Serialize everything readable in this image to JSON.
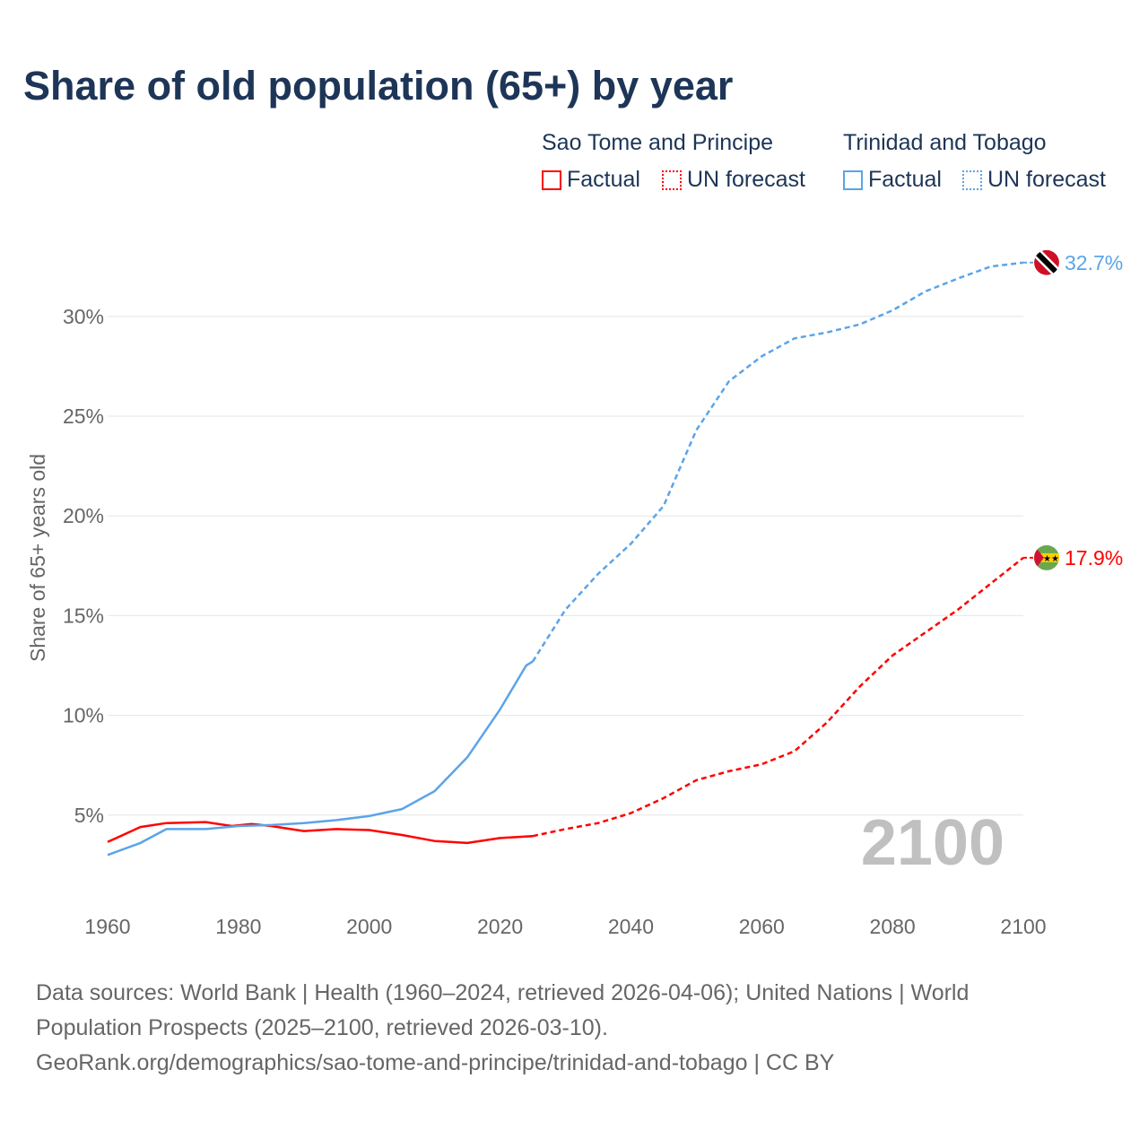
{
  "title": "Share of old population (65+) by year",
  "legend": {
    "groups": [
      {
        "name": "Sao Tome and Principe",
        "factual": "Factual",
        "forecast": "UN forecast",
        "color": "#ff0000"
      },
      {
        "name": "Trinidad and Tobago",
        "factual": "Factual",
        "forecast": "UN forecast",
        "color": "#5ba4e8"
      }
    ]
  },
  "year_watermark": "2100",
  "footer": {
    "line1": "Data sources: World Bank | Health (1960–2024, retrieved 2026-04-06); United Nations | World",
    "line2": "Population Prospects (2025–2100, retrieved 2026-03-10).",
    "line3": "GeoRank.org/demographics/sao-tome-and-principe/trinidad-and-tobago | CC BY"
  },
  "chart_data": {
    "type": "line",
    "title": "Share of old population (65+) by year",
    "xlabel": "",
    "ylabel": "Share of 65+ years old",
    "xlim": [
      1960,
      2100
    ],
    "ylim": [
      0,
      33
    ],
    "x_ticks": [
      "1960",
      "1980",
      "2000",
      "2020",
      "2040",
      "2060",
      "2080",
      "2100"
    ],
    "y_ticks": [
      "5%",
      "10%",
      "15%",
      "20%",
      "25%",
      "30%"
    ],
    "forecast_start": 2025,
    "series": [
      {
        "name": "Sao Tome and Principe",
        "color": "#ff0000",
        "end_label": "17.9%",
        "x": [
          1960,
          1965,
          1969,
          1975,
          1979,
          1982,
          1985,
          1990,
          1995,
          2000,
          2005,
          2010,
          2015,
          2020,
          2025,
          2030,
          2035,
          2040,
          2045,
          2050,
          2055,
          2060,
          2065,
          2070,
          2075,
          2080,
          2085,
          2090,
          2095,
          2100
        ],
        "y": [
          3.65,
          4.4,
          4.6,
          4.65,
          4.45,
          4.55,
          4.45,
          4.2,
          4.3,
          4.25,
          4.0,
          3.7,
          3.6,
          3.85,
          3.95,
          4.3,
          4.6,
          5.1,
          5.85,
          6.75,
          7.2,
          7.55,
          8.2,
          9.65,
          11.45,
          13.0,
          14.15,
          15.3,
          16.6,
          17.9
        ]
      },
      {
        "name": "Trinidad and Tobago",
        "color": "#5ba4e8",
        "end_label": "32.7%",
        "x": [
          1960,
          1965,
          1969,
          1975,
          1980,
          1985,
          1990,
          1995,
          2000,
          2005,
          2010,
          2015,
          2020,
          2024,
          2025,
          2030,
          2035,
          2040,
          2045,
          2050,
          2055,
          2060,
          2065,
          2070,
          2075,
          2080,
          2085,
          2090,
          2095,
          2100
        ],
        "y": [
          3.0,
          3.6,
          4.3,
          4.3,
          4.45,
          4.5,
          4.6,
          4.75,
          4.95,
          5.3,
          6.2,
          7.9,
          10.3,
          12.5,
          12.7,
          15.3,
          17.1,
          18.6,
          20.5,
          24.3,
          26.75,
          28.0,
          28.9,
          29.2,
          29.6,
          30.3,
          31.25,
          31.9,
          32.5,
          32.7
        ]
      }
    ]
  }
}
